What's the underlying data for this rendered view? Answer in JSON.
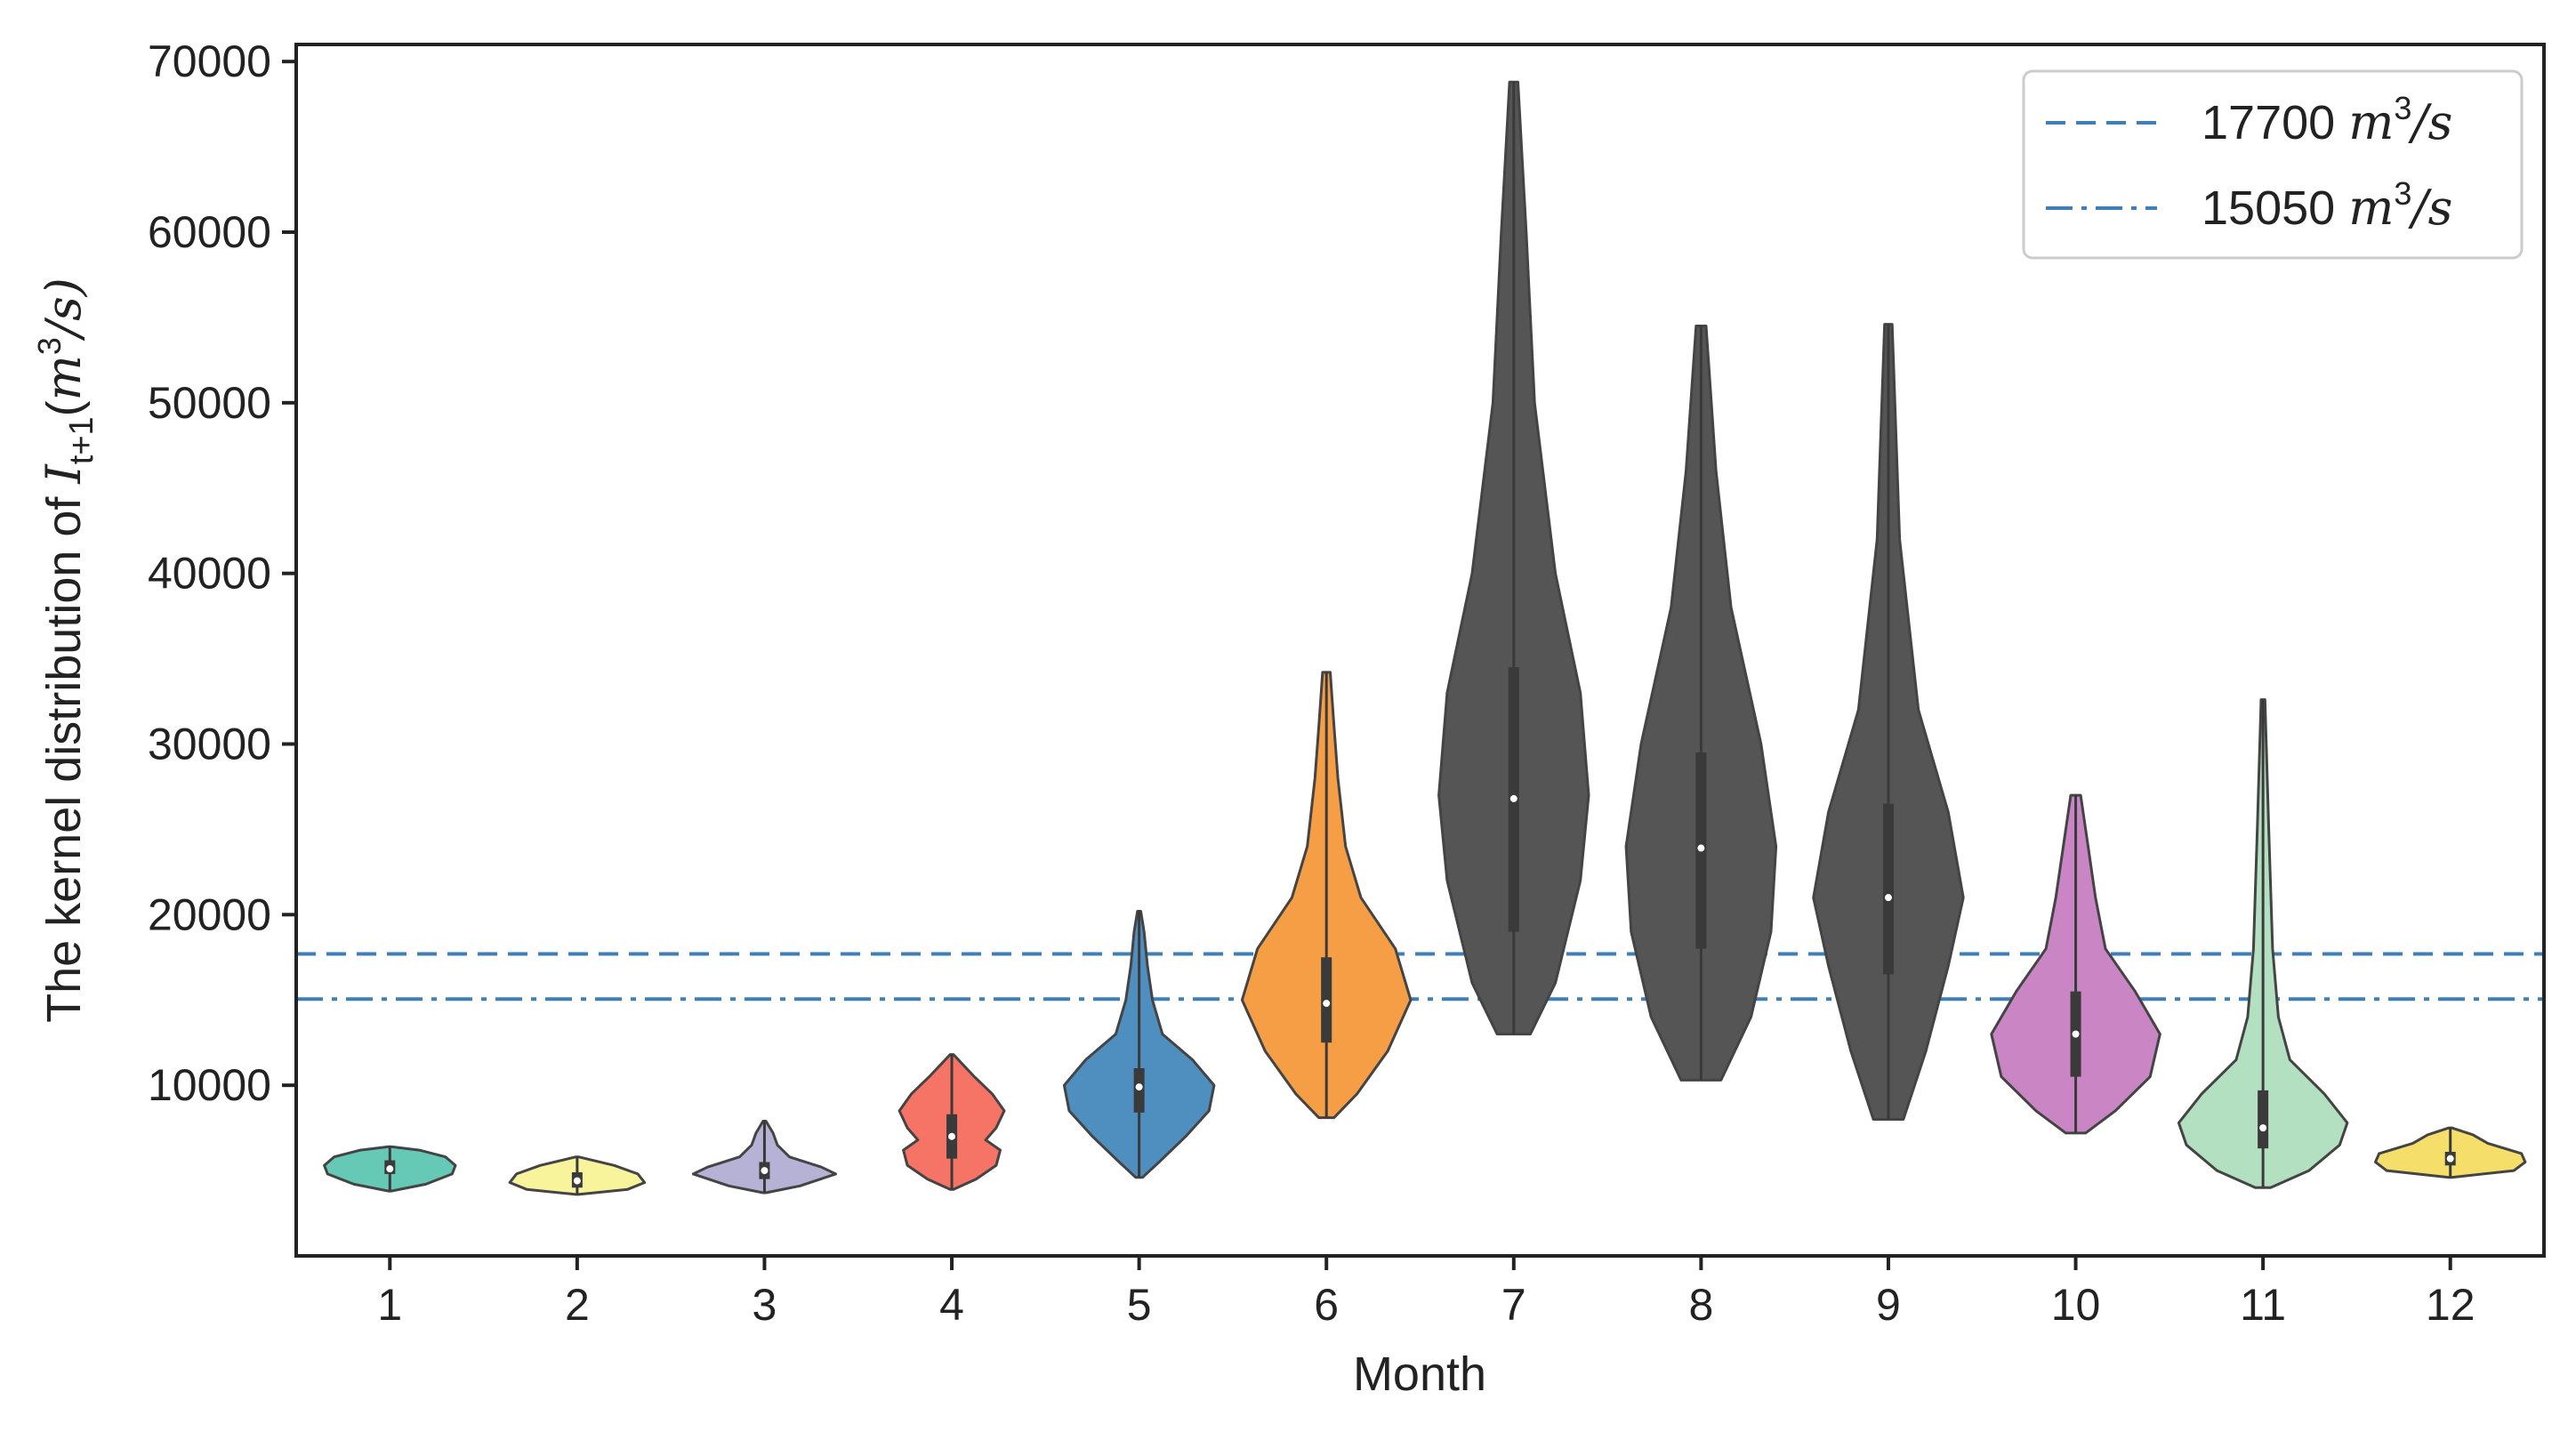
{
  "chart_data": {
    "type": "violin",
    "title": "",
    "xlabel": "Month",
    "ylabel": {
      "prefix": "The kernel distribution of ",
      "symbol": "I",
      "subscript": "t+1",
      "unit_open": "(",
      "unit_var": "m",
      "unit_exp": "3",
      "unit_close": "/s)"
    },
    "categories": [
      "1",
      "2",
      "3",
      "4",
      "5",
      "6",
      "7",
      "8",
      "9",
      "10",
      "11",
      "12"
    ],
    "yticks": [
      10000,
      20000,
      30000,
      40000,
      50000,
      60000,
      70000
    ],
    "ytick_labels": [
      "10000",
      "20000",
      "30000",
      "40000",
      "50000",
      "60000",
      "70000"
    ],
    "ylim": [
      0,
      71000
    ],
    "grid": false,
    "legend_position": "top-right",
    "reference_lines": [
      {
        "value": 17700,
        "style": "dashed",
        "color": "#3f7fb8",
        "label_value": "17700",
        "unit_var": "m",
        "unit_exp": "3",
        "unit_rest": "/s"
      },
      {
        "value": 15050,
        "style": "dashdot",
        "color": "#3f7fb8",
        "label_value": "15050",
        "unit_var": "m",
        "unit_exp": "3",
        "unit_rest": "/s"
      }
    ],
    "violins": [
      {
        "month": "1",
        "color": "#66c9b6",
        "min": 3800,
        "q1": 4800,
        "median": 5100,
        "q3": 5600,
        "max": 6400,
        "profile": [
          [
            3800,
            0.02
          ],
          [
            4200,
            0.55
          ],
          [
            4800,
            0.95
          ],
          [
            5300,
            1.0
          ],
          [
            5800,
            0.85
          ],
          [
            6200,
            0.45
          ],
          [
            6400,
            0.02
          ]
        ],
        "maxhw": 0.35
      },
      {
        "month": "2",
        "color": "#f8f49c",
        "min": 3600,
        "q1": 4000,
        "median": 4400,
        "q3": 4900,
        "max": 5800,
        "profile": [
          [
            3600,
            0.02
          ],
          [
            3900,
            0.75
          ],
          [
            4300,
            1.0
          ],
          [
            4800,
            0.9
          ],
          [
            5300,
            0.55
          ],
          [
            5800,
            0.02
          ]
        ],
        "maxhw": 0.36
      },
      {
        "month": "3",
        "color": "#b5b2d5",
        "min": 3700,
        "q1": 4500,
        "median": 5000,
        "q3": 5500,
        "max": 7900,
        "profile": [
          [
            3700,
            0.02
          ],
          [
            4100,
            0.5
          ],
          [
            4800,
            1.0
          ],
          [
            5200,
            0.8
          ],
          [
            5800,
            0.35
          ],
          [
            6500,
            0.18
          ],
          [
            7200,
            0.12
          ],
          [
            7900,
            0.02
          ]
        ],
        "maxhw": 0.38
      },
      {
        "month": "4",
        "color": "#f57466",
        "min": 3900,
        "q1": 5700,
        "median": 7000,
        "q3": 8300,
        "max": 11800,
        "profile": [
          [
            3900,
            0.02
          ],
          [
            4500,
            0.3
          ],
          [
            5300,
            0.55
          ],
          [
            6200,
            0.6
          ],
          [
            6800,
            0.42
          ],
          [
            7500,
            0.55
          ],
          [
            8500,
            0.65
          ],
          [
            9500,
            0.5
          ],
          [
            10500,
            0.28
          ],
          [
            11300,
            0.12
          ],
          [
            11800,
            0.02
          ]
        ],
        "maxhw": 0.28
      },
      {
        "month": "5",
        "color": "#4f8fbf",
        "min": 4600,
        "q1": 8400,
        "median": 9900,
        "q3": 11000,
        "max": 20200,
        "profile": [
          [
            4600,
            0.02
          ],
          [
            5500,
            0.12
          ],
          [
            7000,
            0.28
          ],
          [
            8500,
            0.42
          ],
          [
            10000,
            0.45
          ],
          [
            11500,
            0.32
          ],
          [
            13000,
            0.14
          ],
          [
            15000,
            0.08
          ],
          [
            17000,
            0.05
          ],
          [
            19000,
            0.03
          ],
          [
            20200,
            0.01
          ]
        ],
        "maxhw": 0.4
      },
      {
        "month": "6",
        "color": "#f59e45",
        "min": 8100,
        "q1": 12500,
        "median": 14800,
        "q3": 17500,
        "max": 34200,
        "profile": [
          [
            8100,
            0.02
          ],
          [
            9500,
            0.08
          ],
          [
            12000,
            0.16
          ],
          [
            15000,
            0.22
          ],
          [
            18000,
            0.18
          ],
          [
            21000,
            0.09
          ],
          [
            24000,
            0.05
          ],
          [
            28000,
            0.03
          ],
          [
            31000,
            0.02
          ],
          [
            34200,
            0.01
          ]
        ],
        "maxhw": 0.45
      },
      {
        "month": "7",
        "color": "#555555",
        "min": 13000,
        "q1": 19000,
        "median": 26800,
        "q3": 34500,
        "max": 68800,
        "profile": [
          [
            13000,
            0.02
          ],
          [
            16000,
            0.05
          ],
          [
            22000,
            0.08
          ],
          [
            27000,
            0.09
          ],
          [
            33000,
            0.08
          ],
          [
            40000,
            0.05
          ],
          [
            50000,
            0.025
          ],
          [
            60000,
            0.015
          ],
          [
            68800,
            0.005
          ]
        ],
        "maxhw": 0.4
      },
      {
        "month": "8",
        "color": "#555555",
        "min": 10300,
        "q1": 18000,
        "median": 23900,
        "q3": 29500,
        "max": 54500,
        "profile": [
          [
            10300,
            0.02
          ],
          [
            14000,
            0.05
          ],
          [
            19000,
            0.07
          ],
          [
            24000,
            0.075
          ],
          [
            30000,
            0.06
          ],
          [
            38000,
            0.03
          ],
          [
            46000,
            0.015
          ],
          [
            54500,
            0.005
          ]
        ],
        "maxhw": 0.4
      },
      {
        "month": "9",
        "color": "#555555",
        "min": 8000,
        "q1": 16500,
        "median": 21000,
        "q3": 26500,
        "max": 54600,
        "profile": [
          [
            8000,
            0.02
          ],
          [
            12000,
            0.05
          ],
          [
            17000,
            0.08
          ],
          [
            21000,
            0.1
          ],
          [
            26000,
            0.08
          ],
          [
            32000,
            0.04
          ],
          [
            42000,
            0.015
          ],
          [
            54600,
            0.005
          ]
        ],
        "maxhw": 0.4
      },
      {
        "month": "10",
        "color": "#c985c4",
        "min": 7200,
        "q1": 10500,
        "median": 13000,
        "q3": 15500,
        "max": 27000,
        "profile": [
          [
            7200,
            0.02
          ],
          [
            8500,
            0.08
          ],
          [
            10500,
            0.15
          ],
          [
            13000,
            0.17
          ],
          [
            15500,
            0.12
          ],
          [
            18000,
            0.06
          ],
          [
            21000,
            0.04
          ],
          [
            24000,
            0.025
          ],
          [
            27000,
            0.01
          ]
        ],
        "maxhw": 0.45
      },
      {
        "month": "11",
        "color": "#b3e0c0",
        "min": 4000,
        "q1": 6300,
        "median": 7500,
        "q3": 9700,
        "max": 32600,
        "profile": [
          [
            4000,
            0.02
          ],
          [
            5000,
            0.12
          ],
          [
            6500,
            0.2
          ],
          [
            7800,
            0.22
          ],
          [
            9500,
            0.16
          ],
          [
            11500,
            0.07
          ],
          [
            14000,
            0.04
          ],
          [
            18000,
            0.025
          ],
          [
            25000,
            0.015
          ],
          [
            32600,
            0.005
          ]
        ],
        "maxhw": 0.45
      },
      {
        "month": "12",
        "color": "#f5de6a",
        "min": 4600,
        "q1": 5300,
        "median": 5700,
        "q3": 6100,
        "max": 7500,
        "profile": [
          [
            4600,
            0.02
          ],
          [
            5000,
            0.85
          ],
          [
            5500,
            1.0
          ],
          [
            6000,
            0.95
          ],
          [
            6600,
            0.5
          ],
          [
            7100,
            0.3
          ],
          [
            7500,
            0.02
          ]
        ],
        "maxhw": 0.4
      }
    ]
  },
  "colors": {
    "axis": "#222222",
    "violin_edge": "#444444",
    "box": "#3a3a3a",
    "median_dot": "#ffffff"
  }
}
